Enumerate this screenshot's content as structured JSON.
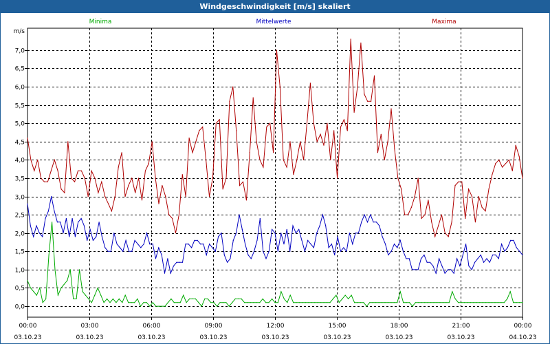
{
  "window": {
    "title": "Windgeschwindigkeit [m/s] skaliert"
  },
  "chart_data": {
    "type": "line",
    "title": "Windgeschwindigkeit [m/s] skaliert",
    "ylabel": "m/s",
    "xlabel": "",
    "ylim": [
      -0.3,
      7.6
    ],
    "xlim": [
      0,
      24
    ],
    "y_ticks": [
      "0,0",
      "0,5",
      "1,0",
      "1,5",
      "2,0",
      "2,5",
      "3,0",
      "3,5",
      "4,0",
      "4,5",
      "5,0",
      "5,5",
      "6,0",
      "6,5",
      "7,0"
    ],
    "y_tick_values": [
      0,
      0.5,
      1,
      1.5,
      2,
      2.5,
      3,
      3.5,
      4,
      4.5,
      5,
      5.5,
      6,
      6.5,
      7
    ],
    "x_ticks": [
      {
        "time": "00:00",
        "date": "03.10.23"
      },
      {
        "time": "03:00",
        "date": "03.10.23"
      },
      {
        "time": "06:00",
        "date": "03.10.23"
      },
      {
        "time": "09:00",
        "date": "03.10.23"
      },
      {
        "time": "12:00",
        "date": "03.10.23"
      },
      {
        "time": "15:00",
        "date": "03.10.23"
      },
      {
        "time": "18:00",
        "date": "03.10.23"
      },
      {
        "time": "21:00",
        "date": "03.10.23"
      },
      {
        "time": "00:00",
        "date": "04.10.23"
      }
    ],
    "x_tick_hours": [
      0,
      3,
      6,
      9,
      12,
      15,
      18,
      21,
      24
    ],
    "grid": true,
    "legend_placement": "top",
    "series": [
      {
        "name": "Minima",
        "color": "#00aa00",
        "values": [
          0.7,
          0.5,
          0.4,
          0.3,
          0.5,
          0.1,
          0.2,
          1.4,
          2.3,
          1.0,
          0.3,
          0.5,
          0.6,
          0.7,
          1.0,
          0.2,
          0.2,
          1.0,
          0.4,
          0.3,
          0.2,
          0.1,
          0.3,
          0.5,
          0.3,
          0.1,
          0.2,
          0.1,
          0.2,
          0.1,
          0.2,
          0.1,
          0.3,
          0.1,
          0.1,
          0.1,
          0.2,
          0.0,
          0.1,
          0.1,
          0.0,
          0.1,
          0.0,
          0.0,
          0.0,
          0.0,
          0.1,
          0.2,
          0.1,
          0.1,
          0.1,
          0.3,
          0.1,
          0.2,
          0.2,
          0.2,
          0.1,
          0.0,
          0.2,
          0.2,
          0.1,
          0.1,
          0.0,
          0.1,
          0.1,
          0.1,
          0.0,
          0.1,
          0.2,
          0.2,
          0.2,
          0.1,
          0.1,
          0.1,
          0.1,
          0.1,
          0.1,
          0.2,
          0.1,
          0.1,
          0.2,
          0.1,
          0.1,
          0.4,
          0.2,
          0.1,
          0.3,
          0.1,
          0.1,
          0.1,
          0.1,
          0.1,
          0.1,
          0.1,
          0.1,
          0.1,
          0.1,
          0.1,
          0.1,
          0.1,
          0.2,
          0.3,
          0.1,
          0.2,
          0.3,
          0.2,
          0.3,
          0.1,
          0.1,
          0.1,
          0.1,
          0.0,
          0.1,
          0.1,
          0.1,
          0.1,
          0.1,
          0.1,
          0.1,
          0.1,
          0.1,
          0.1,
          0.4,
          0.1,
          0.1,
          0.1,
          0.0,
          0.1,
          0.1,
          0.1,
          0.1,
          0.1,
          0.1,
          0.1,
          0.1,
          0.1,
          0.1,
          0.1,
          0.1,
          0.4,
          0.2,
          0.1,
          0.1,
          0.1,
          0.1,
          0.1,
          0.1,
          0.1,
          0.1,
          0.1,
          0.1,
          0.1,
          0.1,
          0.1,
          0.1,
          0.1,
          0.1,
          0.2,
          0.4,
          0.1,
          0.1,
          0.1,
          0.1
        ]
      },
      {
        "name": "Mittelwerte",
        "color": "#0000c0",
        "values": [
          2.8,
          2.2,
          1.9,
          2.2,
          2.0,
          1.9,
          2.4,
          2.6,
          3.0,
          2.6,
          2.3,
          2.3,
          2.0,
          2.4,
          1.9,
          2.4,
          1.9,
          2.3,
          2.4,
          2.2,
          1.8,
          2.1,
          1.8,
          1.9,
          2.3,
          1.9,
          1.6,
          1.5,
          1.5,
          2.0,
          1.7,
          1.6,
          1.5,
          1.8,
          1.5,
          1.5,
          1.8,
          1.7,
          1.6,
          1.7,
          2.0,
          1.7,
          1.7,
          1.3,
          1.6,
          1.4,
          0.9,
          1.3,
          0.9,
          1.1,
          1.2,
          1.2,
          1.2,
          1.7,
          1.7,
          1.6,
          1.8,
          1.8,
          1.7,
          1.7,
          1.4,
          1.7,
          1.6,
          1.5,
          1.9,
          2.0,
          1.4,
          1.2,
          1.3,
          1.8,
          2.0,
          2.5,
          2.1,
          1.7,
          1.4,
          1.3,
          1.5,
          1.8,
          2.4,
          1.5,
          1.3,
          1.5,
          2.1,
          2.0,
          1.5,
          2.0,
          1.7,
          2.1,
          1.5,
          2.2,
          2.0,
          2.1,
          1.8,
          1.5,
          1.8,
          1.7,
          1.6,
          2.0,
          2.2,
          2.5,
          2.2,
          1.6,
          1.7,
          1.4,
          1.9,
          1.5,
          1.6,
          1.5,
          2.0,
          1.7,
          2.0,
          2.0,
          2.3,
          2.5,
          2.3,
          2.5,
          2.3,
          2.3,
          2.2,
          1.9,
          1.7,
          1.4,
          1.5,
          1.7,
          1.6,
          1.8,
          1.5,
          1.3,
          1.3,
          1.0,
          1.0,
          1.0,
          1.3,
          1.4,
          1.2,
          1.2,
          1.1,
          0.9,
          1.3,
          1.1,
          0.9,
          1.0,
          1.0,
          0.9,
          1.3,
          1.1,
          1.4,
          1.7,
          1.1,
          1.0,
          1.2,
          1.3,
          1.4,
          1.2,
          1.3,
          1.2,
          1.4,
          1.4,
          1.3,
          1.7,
          1.5,
          1.6,
          1.8,
          1.8,
          1.6,
          1.5,
          1.4
        ]
      },
      {
        "name": "Maxima",
        "color": "#b00000",
        "values": [
          4.6,
          4.0,
          3.7,
          4.0,
          3.5,
          3.4,
          3.4,
          3.7,
          4.0,
          3.7,
          3.2,
          3.1,
          4.5,
          3.5,
          3.4,
          3.7,
          3.7,
          3.5,
          3.0,
          3.7,
          3.5,
          3.1,
          3.4,
          3.0,
          2.8,
          2.6,
          3.0,
          3.8,
          4.2,
          3.0,
          3.3,
          3.5,
          3.1,
          3.5,
          2.9,
          3.7,
          3.9,
          4.5,
          3.5,
          2.8,
          3.3,
          3.0,
          2.5,
          2.4,
          2.0,
          2.5,
          3.6,
          3.0,
          4.6,
          4.2,
          4.5,
          4.8,
          4.9,
          4.0,
          3.0,
          3.5,
          5.0,
          5.1,
          3.2,
          3.5,
          5.6,
          6.0,
          4.8,
          3.3,
          3.4,
          2.9,
          4.2,
          5.7,
          4.5,
          4.0,
          3.8,
          4.9,
          5.0,
          4.2,
          7.0,
          6.0,
          4.0,
          3.8,
          4.5,
          3.6,
          4.0,
          4.5,
          4.0,
          5.0,
          6.1,
          5.0,
          4.5,
          4.7,
          4.4,
          5.0,
          4.0,
          4.8,
          3.5,
          4.9,
          5.1,
          4.8,
          7.3,
          5.3,
          6.0,
          7.2,
          5.8,
          5.6,
          5.6,
          6.3,
          4.2,
          4.7,
          4.0,
          4.5,
          5.4,
          4.3,
          3.5,
          3.2,
          2.5,
          2.5,
          2.7,
          3.0,
          3.5,
          2.4,
          2.5,
          2.9,
          2.3,
          1.9,
          2.2,
          2.5,
          2.0,
          1.9,
          2.3,
          3.3,
          3.4,
          3.4,
          2.4,
          3.2,
          3.0,
          2.3,
          3.0,
          2.7,
          2.6,
          3.2,
          3.6,
          3.9,
          4.0,
          3.8,
          3.9,
          4.0,
          3.7,
          4.4,
          4.1,
          3.5
        ]
      }
    ]
  }
}
